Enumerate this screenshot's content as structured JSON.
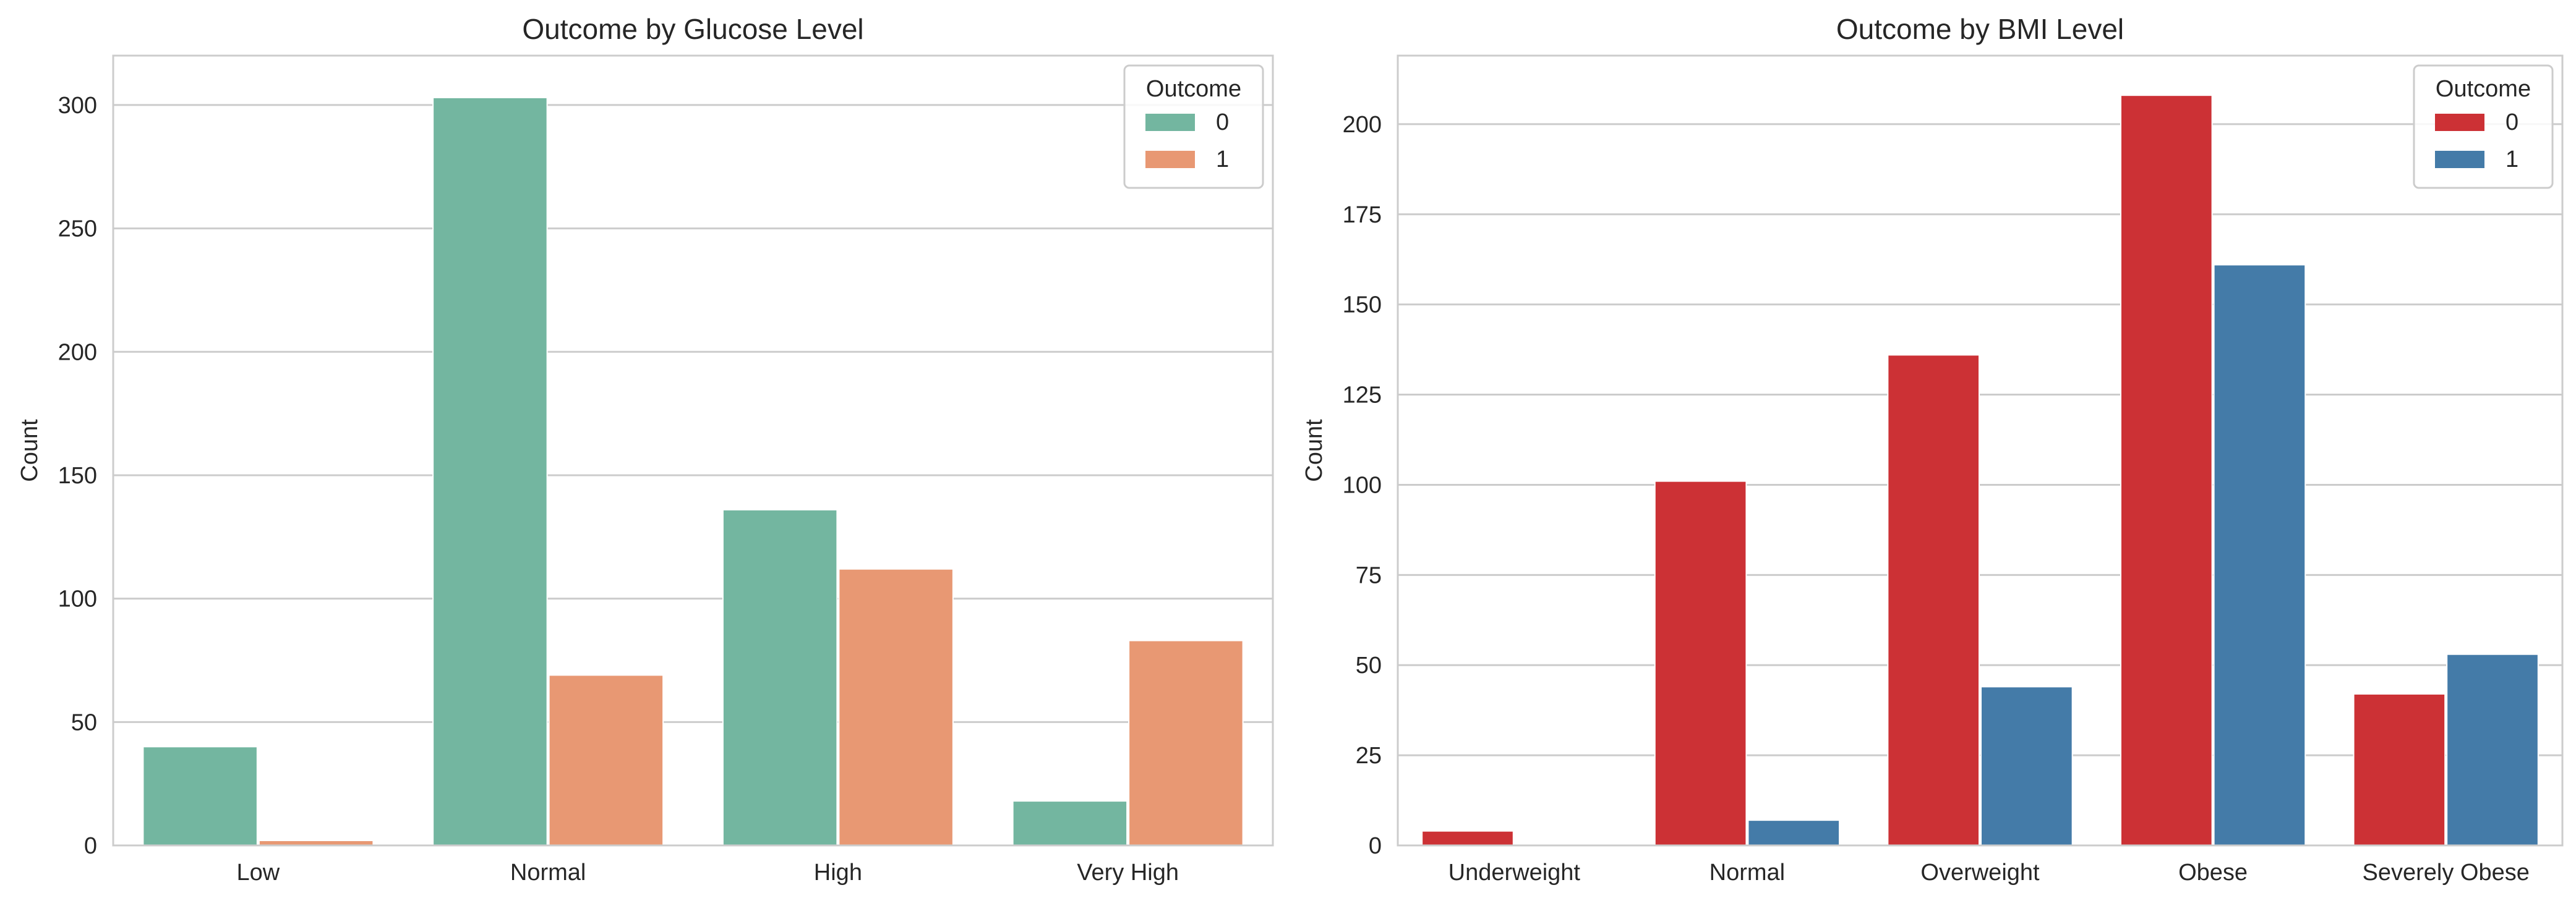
{
  "chart_data": [
    {
      "type": "bar",
      "title": "Outcome by Glucose Level",
      "xlabel": "",
      "ylabel": "Count",
      "categories": [
        "Low",
        "Normal",
        "High",
        "Very High"
      ],
      "ylim": [
        0,
        320
      ],
      "yticks": [
        0,
        50,
        100,
        150,
        200,
        250,
        300
      ],
      "grid": true,
      "legend": {
        "title": "Outcome",
        "placement": "top-right"
      },
      "series": [
        {
          "name": "0",
          "color": "#73b6a0",
          "values": [
            40,
            303,
            136,
            18
          ]
        },
        {
          "name": "1",
          "color": "#e89873",
          "values": [
            2,
            69,
            112,
            83
          ]
        }
      ]
    },
    {
      "type": "bar",
      "title": "Outcome by BMI Level",
      "xlabel": "",
      "ylabel": "Count",
      "categories": [
        "Underweight",
        "Normal",
        "Overweight",
        "Obese",
        "Severely Obese"
      ],
      "ylim": [
        0,
        219
      ],
      "yticks": [
        0,
        25,
        50,
        75,
        100,
        125,
        150,
        175,
        200
      ],
      "grid": true,
      "legend": {
        "title": "Outcome",
        "placement": "top-right"
      },
      "series": [
        {
          "name": "0",
          "color": "#cc3135",
          "values": [
            4,
            101,
            136,
            208,
            42
          ]
        },
        {
          "name": "1",
          "color": "#447ba8",
          "values": [
            0,
            7,
            44,
            161,
            53
          ]
        }
      ]
    }
  ]
}
